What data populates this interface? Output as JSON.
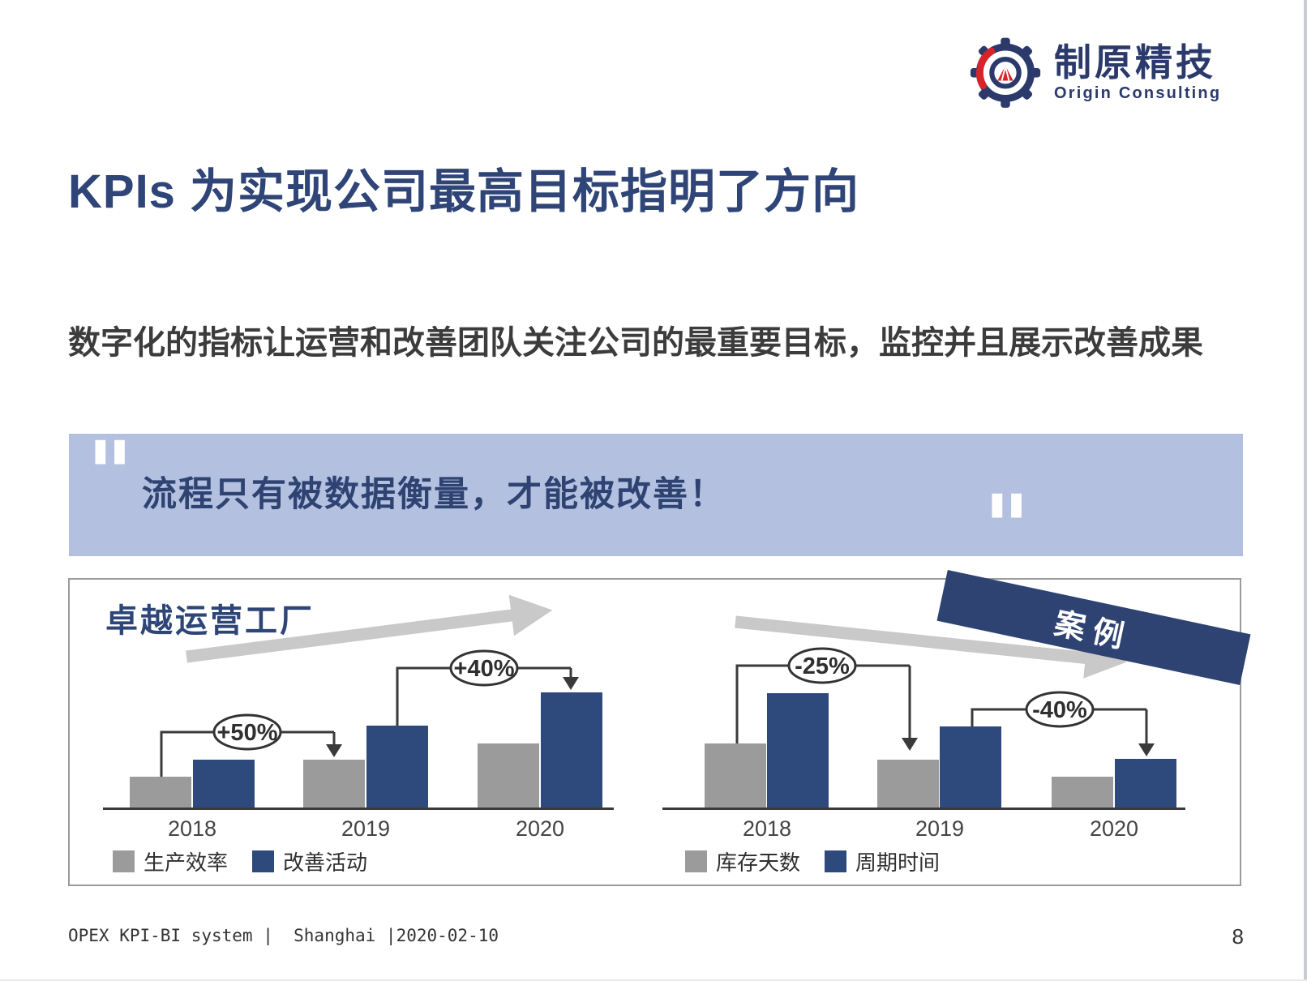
{
  "logo": {
    "company_cn": "制原精技",
    "company_en": "Origin Consulting"
  },
  "title": "KPIs 为实现公司最高目标指明了方向",
  "body_text": "数字化的指标让运营和改善团队关注公司的最重要目标，监控并且展示改善成果",
  "quote": {
    "open_mark": "\"",
    "text": "流程只有被数据衡量，才能被改善！",
    "close_mark": "\""
  },
  "case_banner": "案例",
  "chart_data": [
    {
      "type": "bar",
      "title": "卓越运营工厂",
      "categories": [
        "2018",
        "2019",
        "2020"
      ],
      "series": [
        {
          "name": "生产效率",
          "color": "#9b9b9b",
          "values": [
            40,
            61,
            81
          ]
        },
        {
          "name": "改善活动",
          "color": "#2e4a7c",
          "values": [
            61,
            103,
            144
          ]
        }
      ],
      "annotations": [
        {
          "label": "+50%",
          "from": "2018",
          "to": "2019"
        },
        {
          "label": "+40%",
          "from": "2019",
          "to": "2020"
        }
      ],
      "trend": "up",
      "ylim": [
        0,
        160
      ],
      "grid": false,
      "legend_position": "bottom"
    },
    {
      "type": "bar",
      "title": "",
      "categories": [
        "2018",
        "2019",
        "2020"
      ],
      "series": [
        {
          "name": "库存天数",
          "color": "#9b9b9b",
          "values": [
            81,
            61,
            40
          ]
        },
        {
          "name": "周期时间",
          "color": "#2e4a7c",
          "values": [
            143,
            102,
            62
          ]
        }
      ],
      "annotations": [
        {
          "label": "-25%",
          "from": "2018",
          "to": "2019"
        },
        {
          "label": "-40%",
          "from": "2019",
          "to": "2020"
        }
      ],
      "trend": "down",
      "ylim": [
        0,
        160
      ],
      "grid": false,
      "legend_position": "bottom"
    }
  ],
  "footer": {
    "left": "OPEX KPI-BI system |  Shanghai |2020-02-10",
    "page": "8"
  },
  "colors": {
    "navy": "#2e4372",
    "title_navy": "#2f4577",
    "bar_blue": "#2e4a7c",
    "bar_gray": "#9b9b9b",
    "quote_bg": "#b3c0df",
    "logo_navy": "#2b3a6b",
    "logo_red": "#d8232a",
    "trend_gray": "#c9c9c9"
  }
}
